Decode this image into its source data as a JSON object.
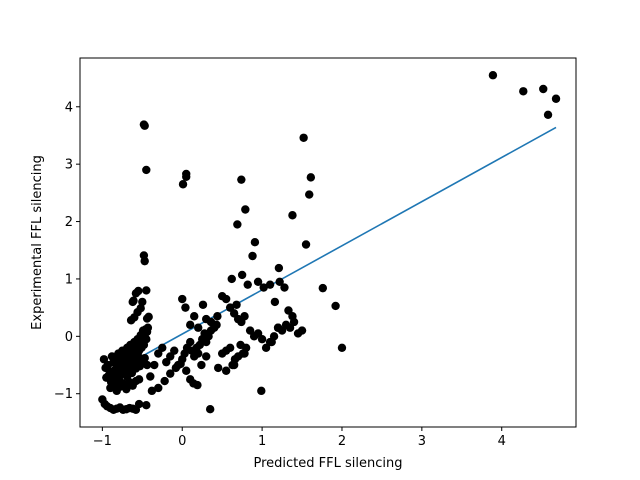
{
  "chart_data": {
    "type": "scatter",
    "title": "",
    "xlabel": "Predicted FFL silencing",
    "ylabel": "Experimental FFL silencing",
    "xlim": [
      -1.28,
      4.93
    ],
    "ylim": [
      -1.58,
      4.85
    ],
    "xticks": [
      -1,
      0,
      1,
      2,
      3,
      4
    ],
    "xtick_labels": [
      "−1",
      "0",
      "1",
      "2",
      "3",
      "4"
    ],
    "yticks": [
      -1,
      0,
      1,
      2,
      3,
      4
    ],
    "ytick_labels": [
      "−1",
      "0",
      "1",
      "2",
      "3",
      "4"
    ],
    "grid": false,
    "colors": {
      "points": "#000000",
      "fit_line": "#1f77b4",
      "axes": "#000000"
    },
    "series": [
      {
        "kind": "points",
        "x": [
          3.89,
          4.27,
          4.52,
          4.58,
          4.68,
          -0.48,
          -0.47,
          -0.45,
          1.52,
          0.01,
          0.05,
          0.05,
          0.74,
          0.79,
          0.69,
          1.38,
          1.61,
          1.59,
          0.91,
          1.55,
          1.21,
          1.76,
          1.92,
          2.0,
          -0.48,
          -0.47,
          -0.55,
          -0.58,
          -0.61,
          -0.62,
          -0.45,
          -0.5,
          -0.52,
          -0.56,
          -0.6,
          -0.64,
          -0.44,
          -0.42,
          -0.98,
          -0.96,
          -0.93,
          -0.9,
          -0.88,
          -0.86,
          -0.84,
          -0.82,
          -0.8,
          -0.79,
          -0.78,
          -0.77,
          -0.76,
          -0.75,
          -0.74,
          -0.73,
          -0.72,
          -0.71,
          -0.7,
          -0.69,
          -0.68,
          -0.67,
          -0.66,
          -0.65,
          -0.64,
          -0.63,
          -0.62,
          -0.61,
          -0.6,
          -0.59,
          -0.58,
          -0.57,
          -0.56,
          -0.55,
          -0.54,
          -0.53,
          -0.52,
          -0.51,
          -0.5,
          -0.49,
          -0.48,
          -0.47,
          -0.46,
          -0.45,
          -0.44,
          -0.43,
          -0.95,
          -0.92,
          -0.89,
          -0.87,
          -0.85,
          -0.83,
          -0.81,
          -0.78,
          -0.76,
          -0.74,
          -0.71,
          -0.69,
          -0.67,
          -0.65,
          -0.63,
          -0.6,
          -0.58,
          -0.56,
          -0.53,
          -0.5,
          -0.47,
          -0.44,
          -0.9,
          -0.86,
          -0.82,
          -0.78,
          -0.74,
          -0.7,
          -0.66,
          -0.62,
          -0.58,
          -0.54,
          -1.0,
          -0.97,
          -0.94,
          -0.9,
          -0.86,
          -0.82,
          -0.78,
          -0.74,
          -0.7,
          -0.66,
          -0.62,
          -0.58,
          -0.54,
          -0.45,
          -0.4,
          -0.35,
          -0.3,
          -0.25,
          -0.2,
          -0.15,
          -0.1,
          -0.05,
          0.0,
          0.03,
          0.06,
          0.1,
          0.12,
          0.15,
          0.18,
          0.2,
          0.22,
          0.25,
          0.28,
          0.3,
          0.33,
          0.36,
          0.4,
          0.43,
          -0.38,
          -0.3,
          -0.22,
          -0.15,
          -0.08,
          -0.02,
          0.05,
          0.1,
          0.14,
          0.19,
          0.24,
          0.3,
          0.0,
          0.04,
          0.1,
          0.15,
          0.2,
          0.26,
          0.3,
          0.36,
          0.4,
          0.44,
          0.5,
          0.55,
          0.6,
          0.65,
          0.7,
          0.74,
          0.78,
          0.5,
          0.55,
          0.6,
          0.63,
          0.66,
          0.7,
          0.73,
          0.76,
          0.8,
          0.85,
          0.9,
          0.95,
          1.0,
          1.05,
          1.1,
          1.15,
          1.2,
          1.25,
          1.3,
          1.35,
          1.4,
          1.45,
          1.5,
          0.62,
          0.68,
          0.75,
          0.82,
          0.88,
          0.95,
          1.02,
          1.1,
          1.16,
          1.22,
          1.28,
          1.33,
          1.38,
          0.35,
          0.45,
          0.55,
          0.65,
          0.78,
          0.99,
          1.12,
          1.2
        ],
        "y": [
          4.55,
          4.27,
          4.31,
          3.86,
          4.14,
          3.69,
          3.67,
          2.9,
          3.46,
          2.65,
          2.83,
          2.78,
          2.73,
          2.21,
          1.95,
          2.11,
          2.77,
          2.47,
          1.64,
          1.6,
          1.19,
          0.84,
          0.53,
          -0.2,
          1.41,
          1.31,
          0.79,
          0.75,
          0.62,
          0.6,
          0.8,
          0.6,
          0.49,
          0.42,
          0.33,
          0.28,
          0.31,
          0.34,
          -0.4,
          -0.55,
          -0.5,
          -0.62,
          -0.35,
          -0.45,
          -0.58,
          -0.42,
          -0.3,
          -0.48,
          -0.55,
          -0.38,
          -0.6,
          -0.25,
          -0.44,
          -0.5,
          -0.35,
          -0.28,
          -0.47,
          -0.2,
          -0.4,
          -0.52,
          -0.33,
          -0.15,
          -0.42,
          -0.27,
          -0.38,
          -0.22,
          -0.1,
          -0.3,
          -0.45,
          -0.18,
          -0.05,
          -0.35,
          -0.25,
          -0.12,
          0.02,
          -0.2,
          -0.08,
          0.1,
          -0.15,
          0.0,
          0.12,
          -0.05,
          0.08,
          0.15,
          -0.72,
          -0.68,
          -0.8,
          -0.65,
          -0.75,
          -0.7,
          -0.6,
          -0.78,
          -0.66,
          -0.55,
          -0.62,
          -0.7,
          -0.58,
          -0.5,
          -0.64,
          -0.48,
          -0.56,
          -0.42,
          -0.52,
          -0.45,
          -0.38,
          -0.5,
          -0.9,
          -0.85,
          -0.95,
          -0.88,
          -0.82,
          -0.92,
          -0.8,
          -0.86,
          -0.78,
          -0.75,
          -1.1,
          -1.18,
          -1.22,
          -1.25,
          -1.28,
          -1.26,
          -1.24,
          -1.28,
          -1.27,
          -1.25,
          -1.26,
          -1.28,
          -1.18,
          -1.2,
          -0.7,
          -0.5,
          -0.3,
          -0.2,
          -0.45,
          -0.35,
          -0.25,
          -0.5,
          -0.4,
          -0.3,
          -0.2,
          -0.1,
          -0.25,
          -0.35,
          -0.2,
          -0.3,
          -0.15,
          -0.05,
          0.05,
          -0.1,
          0.0,
          0.1,
          0.15,
          0.2,
          -0.95,
          -0.9,
          -0.78,
          -0.65,
          -0.55,
          -0.48,
          -0.6,
          -0.75,
          -0.82,
          -0.85,
          -0.5,
          -0.35,
          0.65,
          0.5,
          0.2,
          0.35,
          0.15,
          0.55,
          0.3,
          0.25,
          0.2,
          0.35,
          0.7,
          0.65,
          0.5,
          0.4,
          0.3,
          0.25,
          0.35,
          -0.3,
          -0.25,
          -0.2,
          -0.5,
          -0.4,
          -0.35,
          -0.15,
          -0.3,
          -0.2,
          0.1,
          0.0,
          0.05,
          -0.05,
          -0.2,
          -0.1,
          0.0,
          0.15,
          0.1,
          0.2,
          0.15,
          0.25,
          0.05,
          0.1,
          1.0,
          0.55,
          1.07,
          0.9,
          1.4,
          0.95,
          0.85,
          0.9,
          0.6,
          0.95,
          0.85,
          0.45,
          0.35,
          -1.27,
          -0.55,
          -0.6,
          -0.5,
          -0.3,
          -0.95,
          -0.1,
          0.15
        ]
      },
      {
        "kind": "fit-line",
        "x": [
          -1.0,
          4.68
        ],
        "y": [
          -0.73,
          3.64
        ]
      }
    ]
  }
}
